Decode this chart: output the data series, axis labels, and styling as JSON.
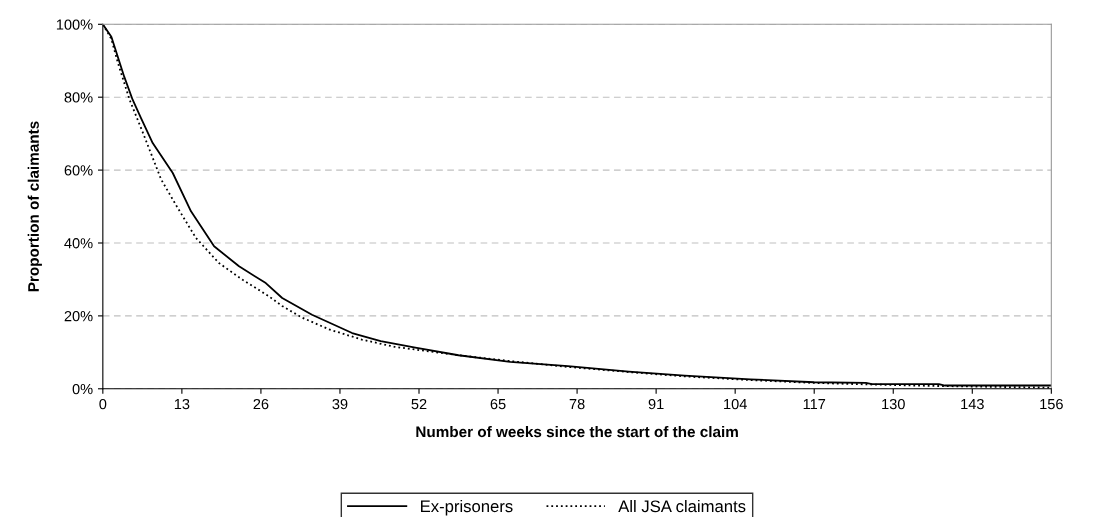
{
  "chart_data": {
    "type": "line",
    "xlabel": "Number of weeks since the start of the claim",
    "ylabel": "Proportion of claimants",
    "xlim": [
      0,
      156
    ],
    "xticks": [
      0,
      13,
      26,
      39,
      52,
      65,
      78,
      91,
      104,
      117,
      130,
      143,
      156
    ],
    "ylim": [
      0,
      100
    ],
    "yticks": [
      {
        "value": 0,
        "label": "0%"
      },
      {
        "value": 20,
        "label": "20%"
      },
      {
        "value": 40,
        "label": "40%"
      },
      {
        "value": 60,
        "label": "60%"
      },
      {
        "value": 80,
        "label": "80%"
      },
      {
        "value": 100,
        "label": "100%"
      }
    ],
    "grid": "y",
    "legend": "bottom",
    "marker": "none",
    "series": [
      {
        "name": "Ex-prisoners",
        "color": "#000000",
        "line_style": "solid",
        "x": [
          0,
          1.4,
          3.5,
          4.9,
          6.3,
          8.2,
          11.5,
          14.5,
          18.3,
          22.4,
          26.8,
          29.5,
          34.4,
          41,
          45.7,
          51.4,
          58.5,
          67,
          76.5,
          86.5,
          95.7,
          106.5,
          117,
          125.5,
          126.5,
          137.5,
          138.5,
          156
        ],
        "values": [
          100,
          96.6,
          85.7,
          79.3,
          74.2,
          67.4,
          59.2,
          48.7,
          39.1,
          33.6,
          29,
          24.9,
          20.3,
          15.3,
          13.1,
          11.3,
          9.2,
          7.4,
          6.2,
          4.7,
          3.6,
          2.6,
          1.8,
          1.6,
          1.3,
          1.3,
          0.9,
          0.9
        ]
      },
      {
        "name": "All JSA claimants",
        "color": "#000000",
        "line_style": "dotted",
        "x": [
          0,
          1.4,
          2.5,
          4.4,
          6.6,
          9.6,
          12,
          15.3,
          19.1,
          23,
          27.3,
          29.5,
          32.8,
          37.2,
          42.6,
          48,
          58.5,
          67,
          76.5,
          86.5,
          95.7,
          106.5,
          117,
          126,
          136,
          156
        ],
        "values": [
          100,
          96,
          89.3,
          79.3,
          70.2,
          57.4,
          50.5,
          41.4,
          34.5,
          29.9,
          25.4,
          22.7,
          19.5,
          16.3,
          13.5,
          11.5,
          9.2,
          7.6,
          6.0,
          4.6,
          3.4,
          2.4,
          1.6,
          1.2,
          0.8,
          0.3
        ]
      }
    ]
  }
}
